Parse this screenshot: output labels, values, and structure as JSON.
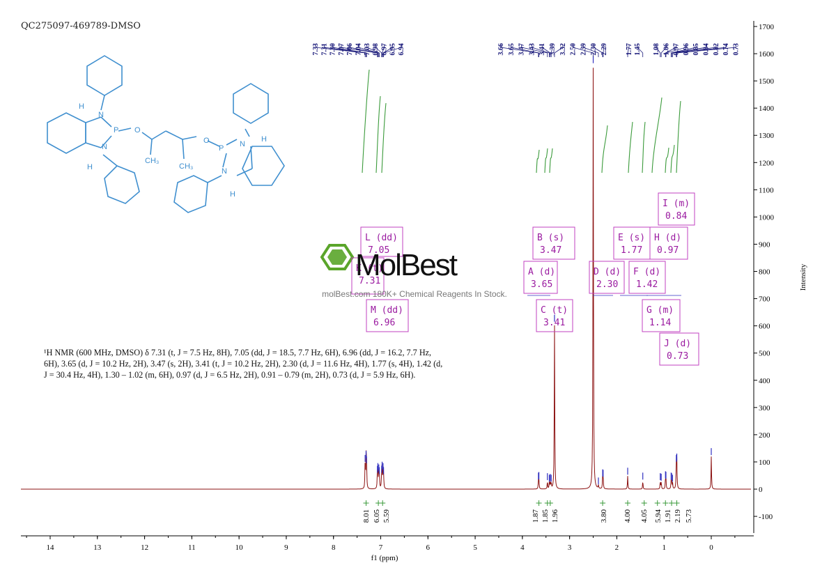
{
  "sample_id": "QC275097-469789-DMSO",
  "description": "¹H NMR (600 MHz, DMSO) δ 7.31 (t, J = 7.5 Hz, 8H), 7.05 (dd, J = 18.5, 7.7 Hz, 6H), 6.96 (dd, J = 16.2, 7.7 Hz, 6H), 3.65 (d, J = 10.2 Hz, 2H), 3.47 (s, 2H), 3.41 (t, J = 10.2 Hz, 2H), 2.30 (d, J = 11.6 Hz, 4H), 1.77 (s, 4H), 1.42 (d, J = 30.4 Hz, 4H), 1.30 – 1.02 (m, 6H), 0.97 (d, J = 6.5 Hz, 2H), 0.91 – 0.79 (m, 2H), 0.73 (d, J = 5.9 Hz, 6H).",
  "watermark": {
    "brand": "MolBest",
    "tagline": "molBest.com 180K+ Chemical Reagents In Stock."
  },
  "molecule_labels": [
    "N",
    "P",
    "O",
    "N",
    "H",
    "H",
    "CH₃",
    "CH₃",
    "O",
    "P",
    "N",
    "N",
    "H",
    "H"
  ],
  "colors": {
    "spectrum": "#8b1010",
    "integral": "#3a9a3a",
    "peak_label": "#1a1a7a",
    "multiplet_box": "#c040c0",
    "molecule": "#3f8fcf",
    "logo": "#5aa52a"
  },
  "chart_data": {
    "type": "line",
    "xlabel": "f1 (ppm)",
    "ylabel": "Intensity",
    "xlim": [
      14.7,
      -0.9
    ],
    "ylim": [
      -170,
      1720
    ],
    "x_ticks": [
      14,
      13,
      12,
      11,
      10,
      9,
      8,
      7,
      6,
      5,
      4,
      3,
      2,
      1,
      0
    ],
    "y_ticks": [
      -100,
      0,
      100,
      200,
      300,
      400,
      500,
      600,
      700,
      800,
      900,
      1000,
      1100,
      1200,
      1300,
      1400,
      1500,
      1600,
      1700
    ],
    "peaks": [
      {
        "ppm": 7.33,
        "h": 95
      },
      {
        "ppm": 7.31,
        "h": 110
      },
      {
        "ppm": 7.3,
        "h": 90
      },
      {
        "ppm": 7.07,
        "h": 55
      },
      {
        "ppm": 7.06,
        "h": 65
      },
      {
        "ppm": 7.04,
        "h": 60
      },
      {
        "ppm": 7.03,
        "h": 50
      },
      {
        "ppm": 6.98,
        "h": 55
      },
      {
        "ppm": 6.97,
        "h": 70
      },
      {
        "ppm": 6.95,
        "h": 65
      },
      {
        "ppm": 6.94,
        "h": 50
      },
      {
        "ppm": 3.66,
        "h": 30
      },
      {
        "ppm": 3.65,
        "h": 32
      },
      {
        "ppm": 3.47,
        "h": 28
      },
      {
        "ppm": 3.43,
        "h": 22
      },
      {
        "ppm": 3.41,
        "h": 25
      },
      {
        "ppm": 3.39,
        "h": 22
      },
      {
        "ppm": 3.32,
        "h": 610
      },
      {
        "ppm": 2.5,
        "h": 1560
      },
      {
        "ppm": 2.39,
        "h": 12
      },
      {
        "ppm": 2.3,
        "h": 42
      },
      {
        "ppm": 2.29,
        "h": 40
      },
      {
        "ppm": 1.77,
        "h": 48
      },
      {
        "ppm": 1.45,
        "h": 30
      },
      {
        "ppm": 1.08,
        "h": 28
      },
      {
        "ppm": 1.06,
        "h": 26
      },
      {
        "ppm": 0.97,
        "h": 35
      },
      {
        "ppm": 0.96,
        "h": 33
      },
      {
        "ppm": 0.85,
        "h": 30
      },
      {
        "ppm": 0.84,
        "h": 28
      },
      {
        "ppm": 0.82,
        "h": 22
      },
      {
        "ppm": 0.74,
        "h": 95
      },
      {
        "ppm": 0.73,
        "h": 100
      },
      {
        "ppm": 0.0,
        "h": 120
      }
    ],
    "peak_labels": {
      "group1": [
        "7.33",
        "7.31",
        "7.30",
        "7.07",
        "7.06",
        "7.04",
        "7.03",
        "6.98",
        "6.97",
        "6.95",
        "6.94"
      ],
      "group2": [
        "3.66",
        "3.65",
        "3.47",
        "3.43",
        "3.41",
        "3.39",
        "3.32",
        "2.50",
        "2.39",
        "2.30",
        "2.29"
      ],
      "group3": [
        "1.77",
        "1.45"
      ],
      "group4": [
        "1.08",
        "1.06",
        "0.97",
        "0.96",
        "0.85",
        "0.84",
        "0.82",
        "0.74",
        "0.73"
      ]
    },
    "integrals": [
      {
        "ppm": 7.31,
        "value": "8.01"
      },
      {
        "ppm": 7.05,
        "value": "6.05"
      },
      {
        "ppm": 6.96,
        "value": "5.59"
      },
      {
        "ppm": 3.65,
        "value": "1.87"
      },
      {
        "ppm": 3.47,
        "value": "1.85"
      },
      {
        "ppm": 3.41,
        "value": "1.96"
      },
      {
        "ppm": 2.3,
        "value": "3.80"
      },
      {
        "ppm": 1.77,
        "value": "4.00"
      },
      {
        "ppm": 1.42,
        "value": "4.05"
      },
      {
        "ppm": 1.14,
        "value": "5.94"
      },
      {
        "ppm": 0.97,
        "value": "1.91"
      },
      {
        "ppm": 0.84,
        "value": "2.19"
      },
      {
        "ppm": 0.73,
        "value": "5.73"
      }
    ],
    "multiplets": [
      {
        "letter": "L",
        "mult": "dd",
        "shift": "7.05"
      },
      {
        "letter": "K",
        "mult": "t",
        "shift": "7.31"
      },
      {
        "letter": "M",
        "mult": "dd",
        "shift": "6.96"
      },
      {
        "letter": "B",
        "mult": "s",
        "shift": "3.47"
      },
      {
        "letter": "A",
        "mult": "d",
        "shift": "3.65"
      },
      {
        "letter": "C",
        "mult": "t",
        "shift": "3.41"
      },
      {
        "letter": "D",
        "mult": "d",
        "shift": "2.30"
      },
      {
        "letter": "E",
        "mult": "s",
        "shift": "1.77"
      },
      {
        "letter": "F",
        "mult": "d",
        "shift": "1.42"
      },
      {
        "letter": "G",
        "mult": "m",
        "shift": "1.14"
      },
      {
        "letter": "H",
        "mult": "d",
        "shift": "0.97"
      },
      {
        "letter": "I",
        "mult": "m",
        "shift": "0.84"
      },
      {
        "letter": "J",
        "mult": "d",
        "shift": "0.73"
      }
    ],
    "grid": false
  }
}
